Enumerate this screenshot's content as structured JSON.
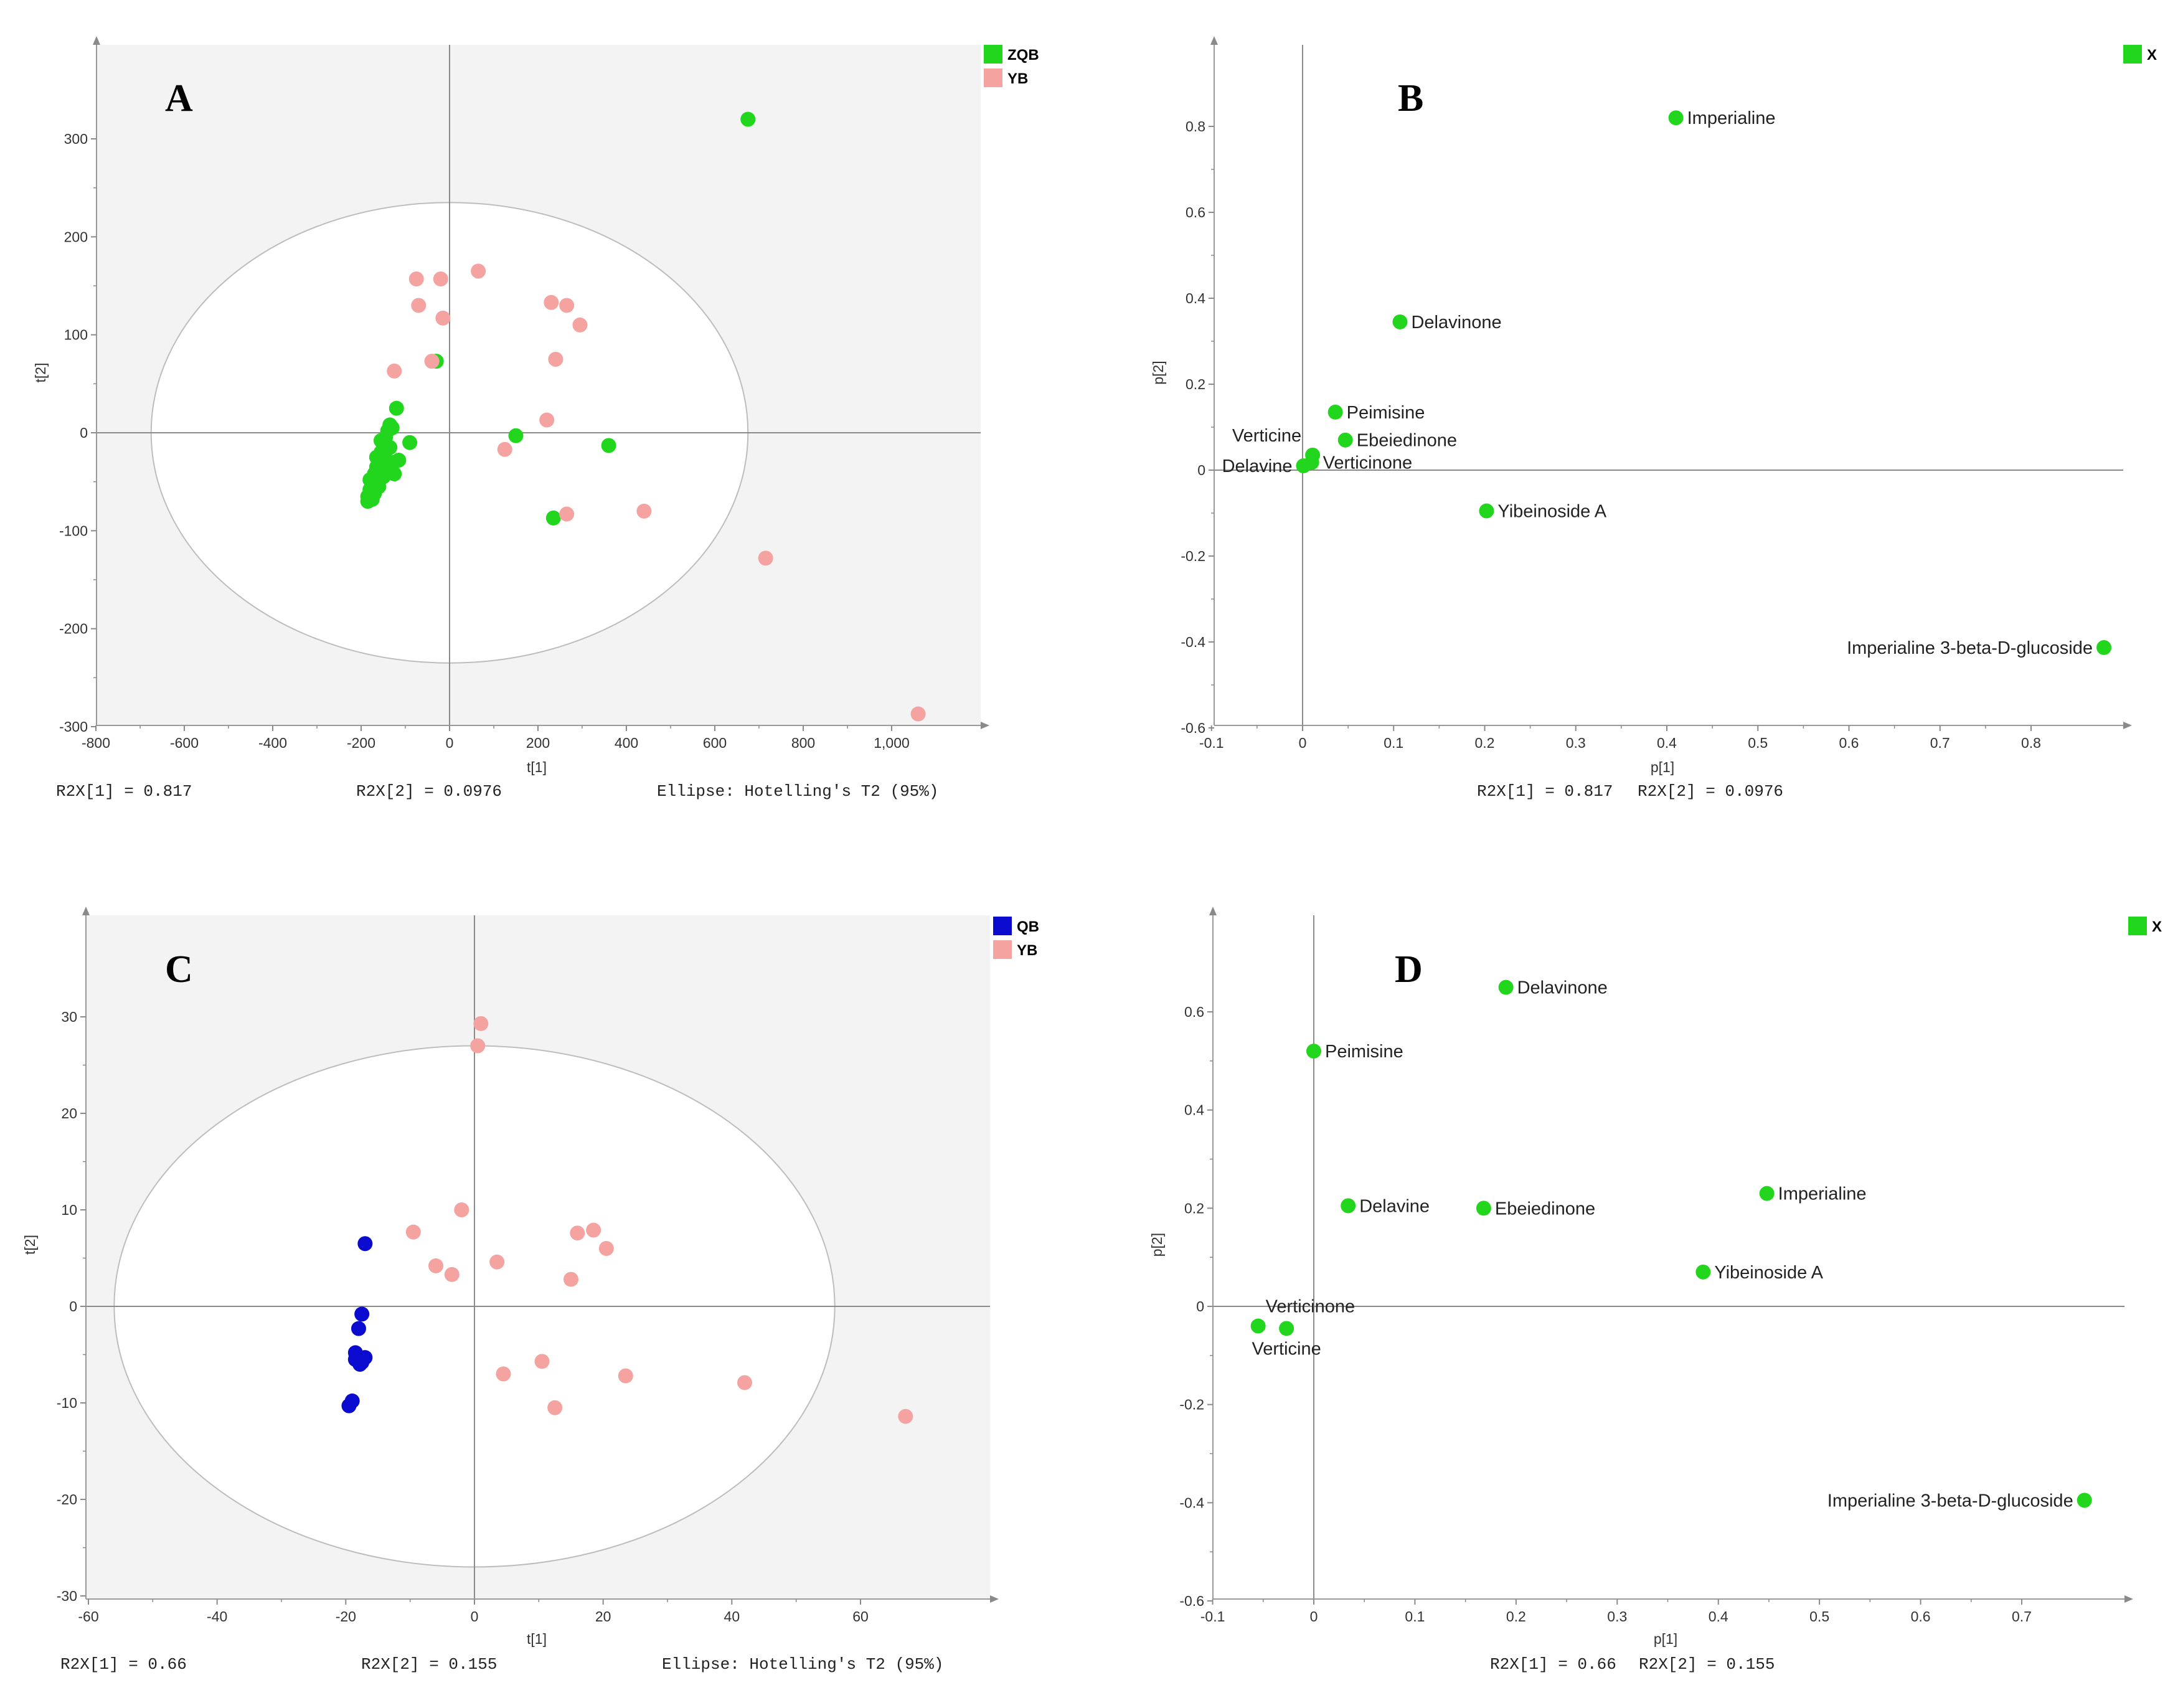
{
  "chart_data": [
    {
      "panel": "A",
      "type": "scatter",
      "xlabel": "t[1]",
      "ylabel": "t[2]",
      "xlim": [
        -800,
        1200
      ],
      "ylim": [
        -300,
        400
      ],
      "xticks": [
        -800,
        -600,
        -400,
        -200,
        0,
        200,
        400,
        600,
        800,
        1000
      ],
      "xtick_labels": [
        "-800",
        "-600",
        "-400",
        "-200",
        "0",
        "200",
        "400",
        "600",
        "800",
        "1,000"
      ],
      "yticks": [
        -300,
        -200,
        -100,
        0,
        100,
        200,
        300
      ],
      "ellipse": {
        "rx": 675,
        "ry": 235
      },
      "legend": [
        {
          "name": "ZQB",
          "color": "#22d61e"
        },
        {
          "name": "YB",
          "color": "#f4a3a0"
        }
      ],
      "series": [
        {
          "name": "ZQB",
          "color": "#22d61e",
          "x": [
            675,
            -30,
            150,
            360,
            235,
            -120,
            -130,
            -135,
            -140,
            -145,
            -150,
            -155,
            -160,
            -165,
            -170,
            -175,
            -180,
            -185,
            -150,
            -140,
            -130,
            -90,
            -115,
            -125,
            -160,
            -170,
            -175,
            -180,
            -145,
            -155,
            -165,
            -135,
            -185
          ],
          "y": [
            320,
            73,
            -3,
            -13,
            -87,
            25,
            5,
            8,
            2,
            -5,
            -12,
            -20,
            -28,
            -35,
            -42,
            -50,
            -58,
            -65,
            -45,
            -38,
            -30,
            -10,
            -28,
            -42,
            -55,
            -62,
            -68,
            -48,
            -18,
            -8,
            -25,
            -15,
            -70
          ]
        },
        {
          "name": "YB",
          "color": "#f4a3a0",
          "x": [
            -75,
            -20,
            65,
            -70,
            -15,
            230,
            265,
            295,
            240,
            -125,
            -40,
            220,
            125,
            265,
            440,
            715,
            1060
          ],
          "y": [
            157,
            157,
            165,
            130,
            117,
            133,
            130,
            110,
            75,
            63,
            73,
            13,
            -17,
            -83,
            -80,
            -128,
            -287
          ]
        }
      ],
      "footer": {
        "r2x1": "R2X[1] = 0.817",
        "r2x2": "R2X[2] = 0.0976",
        "ellipse": "Ellipse: Hotelling's T2 (95%)"
      }
    },
    {
      "panel": "B",
      "type": "scatter",
      "xlabel": "p[1]",
      "ylabel": "p[2]",
      "xlim": [
        -0.1,
        0.9
      ],
      "ylim": [
        -0.6,
        0.95
      ],
      "xticks": [
        -0.1,
        0,
        0.1,
        0.2,
        0.3,
        0.4,
        0.5,
        0.6,
        0.7,
        0.8
      ],
      "xtick_labels": [
        "-0.1",
        "0",
        "0.1",
        "0.2",
        "0.3",
        "0.4",
        "0.5",
        "0.6",
        "0.7",
        "0.8"
      ],
      "yticks": [
        -0.6,
        -0.4,
        -0.2,
        0,
        0.2,
        0.4,
        0.6,
        0.8
      ],
      "ytick_labels": [
        "-0.6",
        "-0.4",
        "-0.2",
        "0",
        "0.2",
        "0.4",
        "0.6",
        "0.8"
      ],
      "legend": [
        {
          "name": "X",
          "color": "#22d61e"
        }
      ],
      "points": [
        {
          "label": "Imperialine",
          "x": 0.41,
          "y": 0.82,
          "anchor": "right"
        },
        {
          "label": "Delavinone",
          "x": 0.107,
          "y": 0.345,
          "anchor": "right"
        },
        {
          "label": "Peimisine",
          "x": 0.036,
          "y": 0.135,
          "anchor": "right"
        },
        {
          "label": "Ebeiedinone",
          "x": 0.047,
          "y": 0.07,
          "anchor": "right"
        },
        {
          "label": "Verticine",
          "x": 0.011,
          "y": 0.035,
          "anchor": "upper-left"
        },
        {
          "label": "Verticinone",
          "x": 0.01,
          "y": 0.018,
          "anchor": "right"
        },
        {
          "label": "Delavine",
          "x": 0.001,
          "y": 0.01,
          "anchor": "left"
        },
        {
          "label": "Yibeinoside A",
          "x": 0.202,
          "y": -0.095,
          "anchor": "right"
        },
        {
          "label": "Imperialine 3-beta-D-glucoside",
          "x": 0.88,
          "y": -0.413,
          "anchor": "left"
        }
      ],
      "footer": {
        "r2x1": "R2X[1] = 0.817",
        "r2x2": "R2X[2] = 0.0976"
      }
    },
    {
      "panel": "C",
      "type": "scatter",
      "xlabel": "t[1]",
      "ylabel": "t[2]",
      "xlim": [
        -60,
        80
      ],
      "ylim": [
        -30,
        40
      ],
      "xticks": [
        -60,
        -40,
        -20,
        0,
        20,
        40,
        60
      ],
      "yticks": [
        -30,
        -20,
        -10,
        0,
        10,
        20,
        30
      ],
      "ellipse": {
        "rx": 56,
        "ry": 27
      },
      "legend": [
        {
          "name": "QB",
          "color": "#0b0bd0"
        },
        {
          "name": "YB",
          "color": "#f4a3a0"
        }
      ],
      "series": [
        {
          "name": "QB",
          "color": "#0b0bd0",
          "x": [
            -17,
            -17.5,
            -18,
            -17,
            -18.5,
            -17.5,
            -18.5,
            -17.8,
            -19,
            -19.5
          ],
          "y": [
            6.5,
            -0.8,
            -2.3,
            -5.3,
            -4.8,
            -5.8,
            -5.5,
            -6,
            -9.8,
            -10.3
          ]
        },
        {
          "name": "YB",
          "color": "#f4a3a0",
          "x": [
            1,
            0.5,
            -2,
            -9.5,
            -6,
            -3.5,
            3.5,
            16,
            18.5,
            20.5,
            15,
            4.5,
            10.5,
            12.5,
            23.5,
            42,
            67
          ],
          "y": [
            29.3,
            27,
            10,
            7.7,
            4.2,
            3.3,
            4.6,
            7.6,
            7.9,
            6,
            2.8,
            -7,
            -5.7,
            -10.5,
            -7.2,
            -7.9,
            -11.4
          ]
        }
      ],
      "footer": {
        "r2x1": "R2X[1] = 0.66",
        "r2x2": "R2X[2] = 0.155",
        "ellipse": "Ellipse: Hotelling's T2 (95%)"
      }
    },
    {
      "panel": "D",
      "type": "scatter",
      "xlabel": "p[1]",
      "ylabel": "p[2]",
      "xlim": [
        -0.1,
        0.8
      ],
      "ylim": [
        -0.6,
        0.75
      ],
      "xticks": [
        -0.1,
        0,
        0.1,
        0.2,
        0.3,
        0.4,
        0.5,
        0.6,
        0.7
      ],
      "xtick_labels": [
        "-0.1",
        "0",
        "0.1",
        "0.2",
        "0.3",
        "0.4",
        "0.5",
        "0.6",
        "0.7"
      ],
      "yticks": [
        -0.6,
        -0.4,
        -0.2,
        0,
        0.2,
        0.4,
        0.6
      ],
      "ytick_labels": [
        "-0.6",
        "-0.4",
        "-0.2",
        "0",
        "0.2",
        "0.4",
        "0.6"
      ],
      "legend": [
        {
          "name": "X",
          "color": "#22d61e"
        }
      ],
      "points": [
        {
          "label": "Delavinone",
          "x": 0.19,
          "y": 0.65,
          "anchor": "right"
        },
        {
          "label": "Peimisine",
          "x": 0.0,
          "y": 0.52,
          "anchor": "right"
        },
        {
          "label": "Delavine",
          "x": 0.034,
          "y": 0.205,
          "anchor": "right"
        },
        {
          "label": "Ebeiedinone",
          "x": 0.168,
          "y": 0.2,
          "anchor": "right"
        },
        {
          "label": "Imperialine",
          "x": 0.448,
          "y": 0.23,
          "anchor": "right"
        },
        {
          "label": "Yibeinoside A",
          "x": 0.385,
          "y": 0.07,
          "anchor": "right"
        },
        {
          "label": "Verticinone",
          "x": -0.055,
          "y": -0.04,
          "anchor": "upper-right"
        },
        {
          "label": "Verticine",
          "x": -0.027,
          "y": -0.045,
          "anchor": "below"
        },
        {
          "label": "Imperialine 3-beta-D-glucoside",
          "x": 0.762,
          "y": -0.395,
          "anchor": "left"
        }
      ],
      "footer": {
        "r2x1": "R2X[1] = 0.66",
        "r2x2": "R2X[2] = 0.155"
      }
    }
  ]
}
